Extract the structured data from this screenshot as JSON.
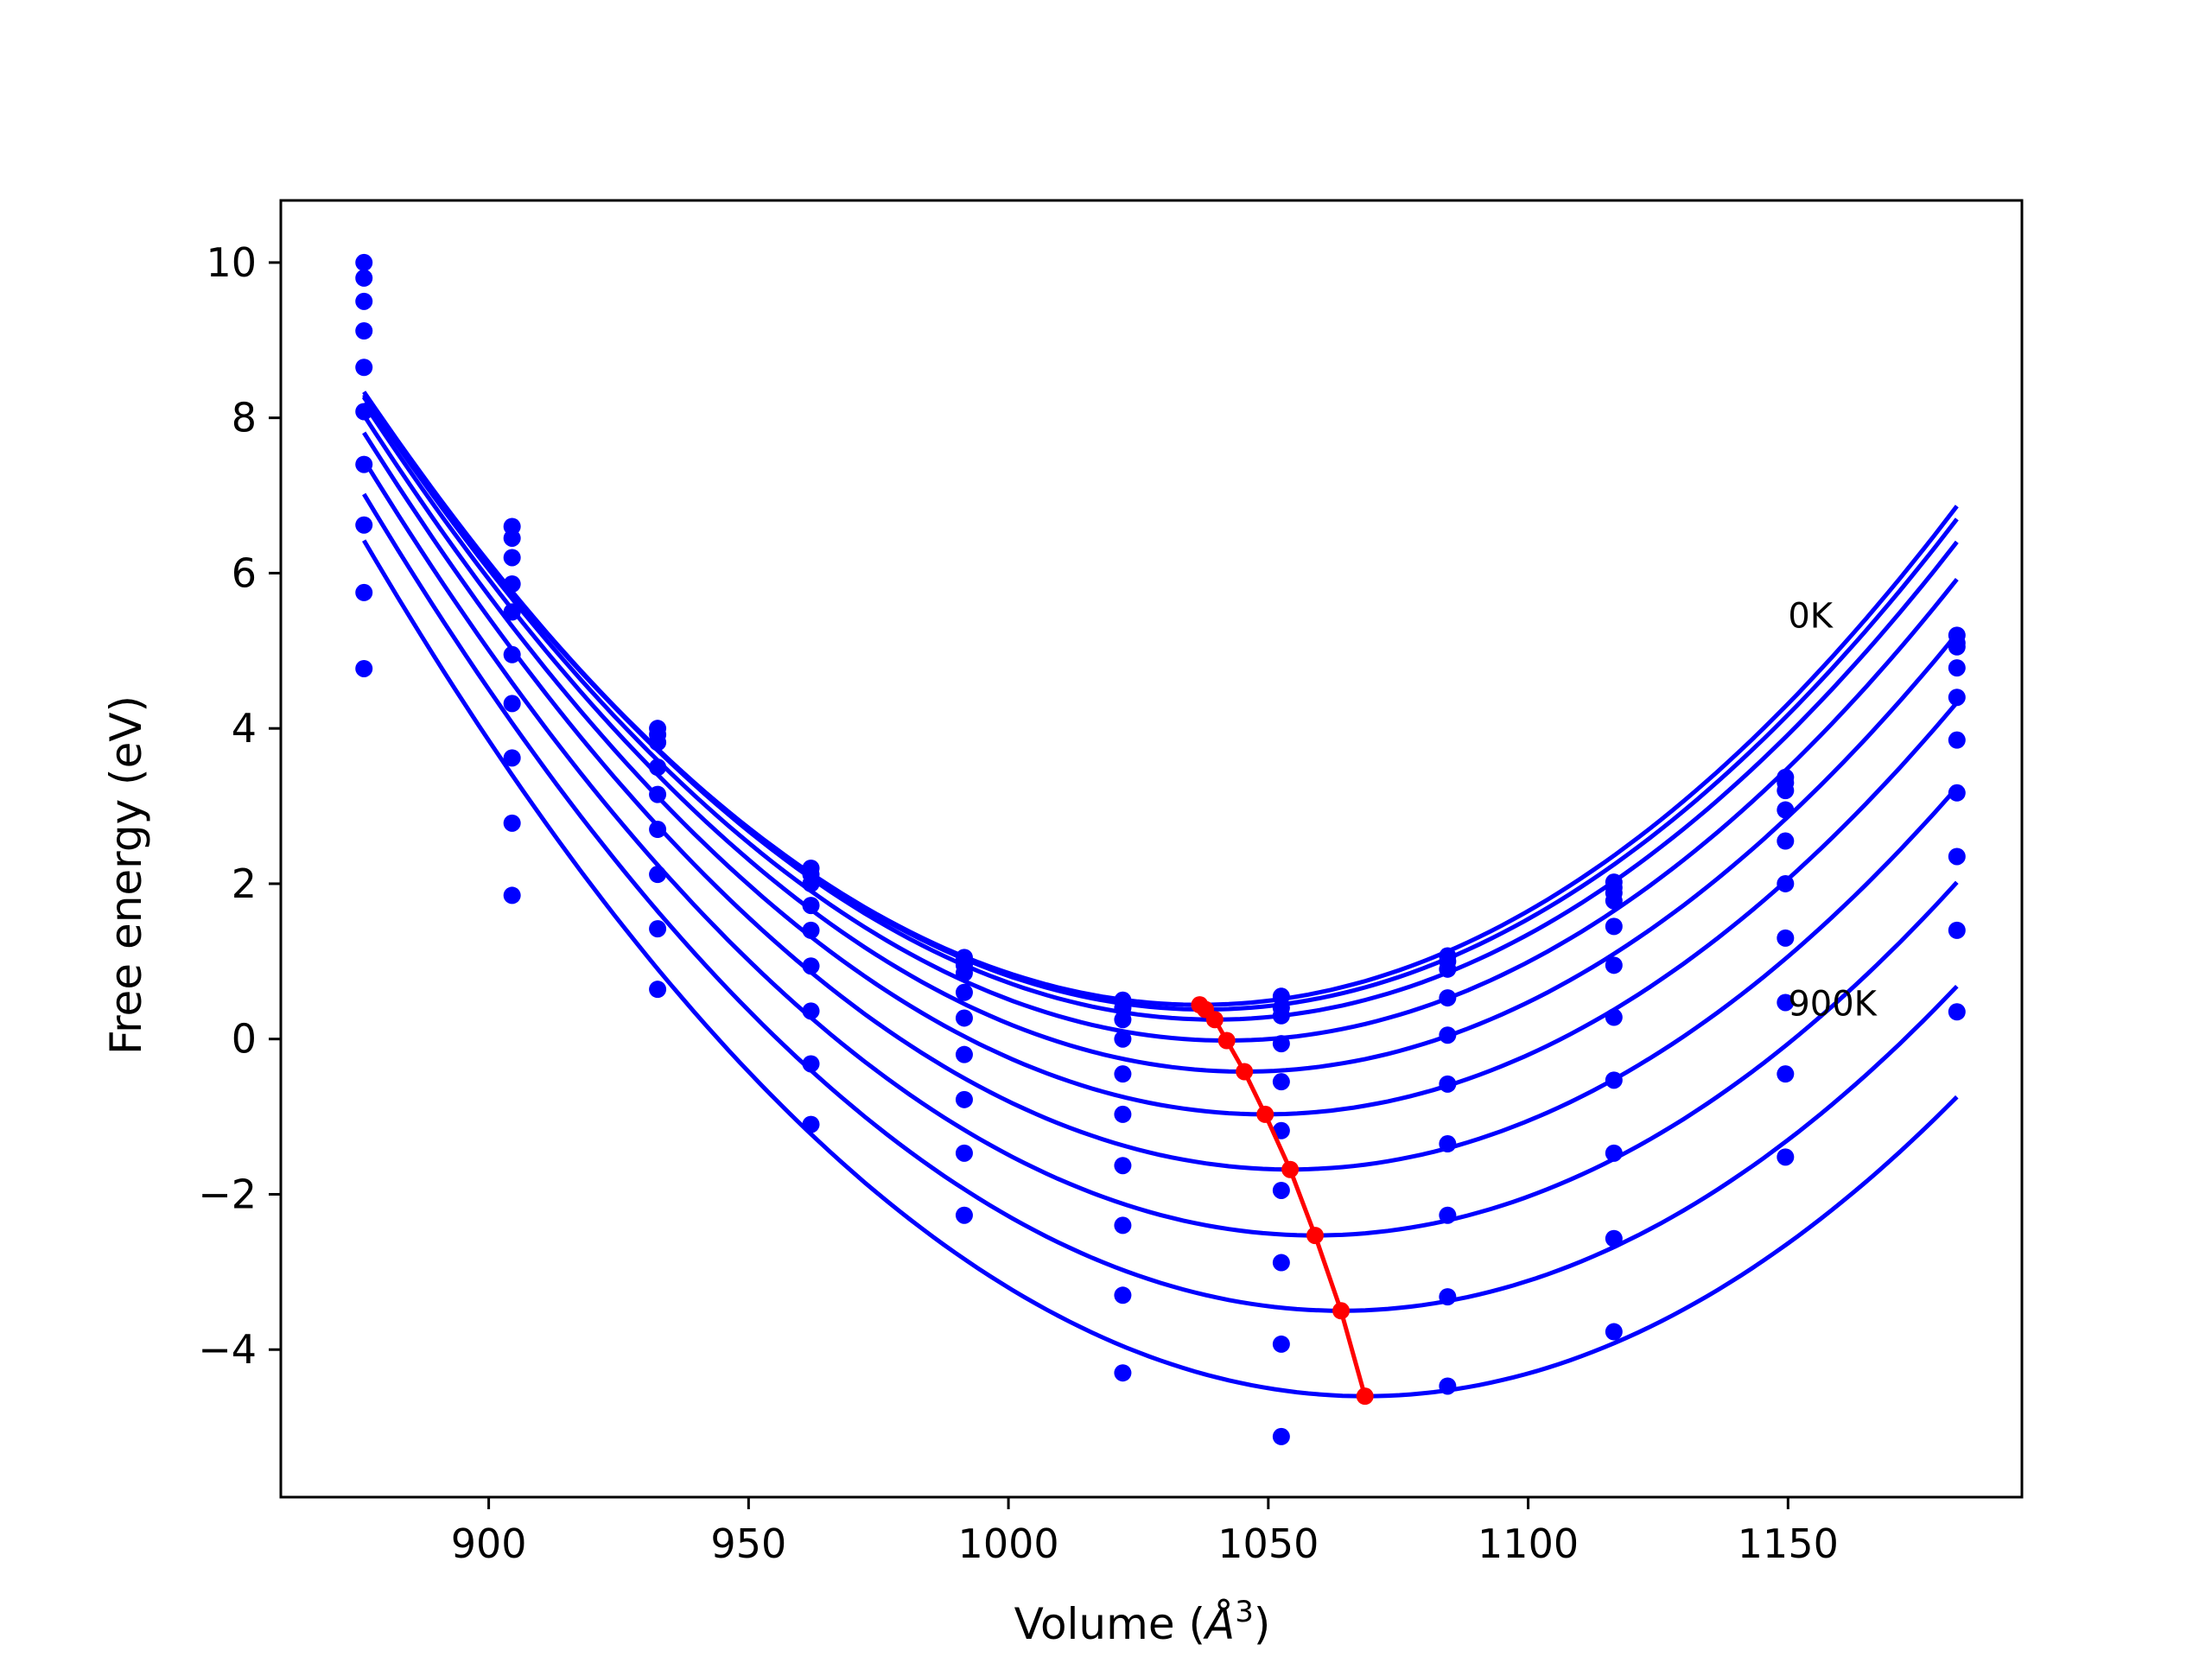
{
  "chart_data": {
    "type": "line",
    "title": "",
    "xlabel": "Volume (",
    "xlabel_unit_base": "Å",
    "xlabel_unit_exp": "3",
    "xlabel_close": ")",
    "ylabel": "Free energy (eV)",
    "xlim": [
      860,
      1195
    ],
    "ylim": [
      -5.9,
      10.8
    ],
    "xticks": [
      900,
      950,
      1000,
      1050,
      1100,
      1150
    ],
    "xtick_labels": [
      "900",
      "950",
      "1000",
      "1050",
      "1100",
      "1150"
    ],
    "yticks": [
      -4,
      -2,
      0,
      2,
      4,
      6,
      8,
      10
    ],
    "ytick_labels": [
      "−4",
      "−2",
      "0",
      "2",
      "4",
      "6",
      "8",
      "10"
    ],
    "grid": false,
    "annotations": [
      {
        "text": "0K",
        "x": 1150,
        "y": 5.3
      },
      {
        "text": "900K",
        "x": 1150,
        "y": 0.3
      }
    ],
    "colors": {
      "fit": "#0000ff",
      "points": "#0000ff",
      "minimum_path": "#ff0000",
      "axes": "#000000"
    },
    "volumes": [
      876,
      904.5,
      932.5,
      962,
      991.5,
      1022,
      1052.5,
      1084.5,
      1116.5,
      1149.5,
      1182.5
    ],
    "series": [
      {
        "points": [
          10.0,
          6.6,
          4.0,
          2.2,
          1.05,
          0.5,
          0.55,
          1.07,
          2.02,
          3.37,
          5.2
        ],
        "fit": {
          "a": 0.0003026,
          "v0": 1036.8,
          "e0": 0.44,
          "from": 876,
          "to": 1182.5
        }
      },
      {
        "points": [
          9.8,
          6.45,
          3.92,
          2.12,
          0.95,
          0.4,
          0.4,
          1.0,
          1.95,
          3.3,
          5.1
        ],
        "fit": {
          "a": 0.0003021,
          "v0": 1037.9,
          "e0": 0.38,
          "from": 876,
          "to": 1182.5
        }
      },
      {
        "points": [
          9.5,
          6.2,
          3.82,
          2.0,
          0.85,
          0.25,
          0.3,
          0.9,
          1.88,
          3.2,
          5.05
        ],
        "fit": {
          "a": 0.0003017,
          "v0": 1039.7,
          "e0": 0.25,
          "from": 876,
          "to": 1182.5
        }
      },
      {
        "points": [
          9.12,
          5.86,
          3.5,
          1.72,
          0.6,
          0.0,
          -0.06,
          0.53,
          1.78,
          2.95,
          4.78
        ],
        "fit": {
          "a": 0.000301,
          "v0": 1042.0,
          "e0": -0.02,
          "from": 876,
          "to": 1182.5
        }
      },
      {
        "points": [
          8.65,
          5.5,
          3.15,
          1.4,
          0.27,
          -0.45,
          -0.55,
          0.05,
          1.45,
          2.55,
          4.4
        ],
        "fit": {
          "a": 0.0003,
          "v0": 1045.4,
          "e0": -0.42,
          "from": 876,
          "to": 1182.5
        }
      },
      {
        "points": [
          8.08,
          4.95,
          2.7,
          0.94,
          -0.2,
          -0.97,
          -1.18,
          -0.58,
          0.95,
          2.0,
          3.85
        ],
        "fit": {
          "a": 0.0002994,
          "v0": 1049.4,
          "e0": -0.97,
          "from": 876,
          "to": 1182.5
        }
      },
      {
        "points": [
          7.4,
          4.32,
          2.12,
          0.36,
          -0.78,
          -1.63,
          -1.95,
          -1.35,
          0.28,
          1.3,
          3.17
        ],
        "fit": {
          "a": 0.0002988,
          "v0": 1054.2,
          "e0": -1.68,
          "from": 876,
          "to": 1182.5
        }
      },
      {
        "points": [
          6.62,
          3.62,
          1.42,
          -0.32,
          -1.47,
          -2.4,
          -2.88,
          -2.27,
          -0.53,
          0.47,
          2.35
        ],
        "fit": {
          "a": 0.0002982,
          "v0": 1059.0,
          "e0": -2.53,
          "from": 876,
          "to": 1182.5
        }
      },
      {
        "points": [
          5.75,
          2.78,
          0.64,
          -1.1,
          -2.27,
          -3.3,
          -3.93,
          -3.32,
          -1.47,
          -0.45,
          1.4
        ],
        "fit": {
          "a": 0.0002976,
          "v0": 1064.0,
          "e0": -3.5,
          "from": 876,
          "to": 1182.5
        }
      },
      {
        "points": [
          4.77,
          1.85,
          null,
          null,
          null,
          -4.3,
          -5.12,
          -4.47,
          -2.57,
          -1.52,
          0.35
        ],
        "fit": {
          "a": 0.0002971,
          "v0": 1068.6,
          "e0": -4.6,
          "from": 876,
          "to": 1182.5
        }
      },
      {
        "points": [
          null,
          null,
          null,
          null,
          null,
          null,
          null,
          null,
          -3.77,
          null,
          null
        ],
        "fit": null
      }
    ],
    "minimum_path": {
      "x": [
        1036.8,
        1037.9,
        1039.7,
        1042.0,
        1045.4,
        1049.4,
        1054.2,
        1059.0,
        1064.0,
        1068.6
      ],
      "y": [
        0.44,
        0.38,
        0.25,
        -0.02,
        -0.42,
        -0.97,
        -1.68,
        -2.53,
        -3.5,
        -4.6
      ]
    }
  }
}
